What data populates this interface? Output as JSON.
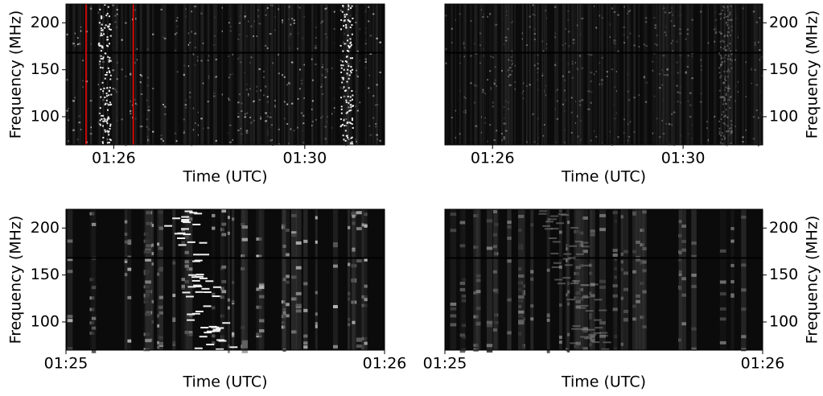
{
  "chart_data": [
    {
      "type": "spectrogram",
      "xlabel": "Time (UTC)",
      "ylabel": "Frequency (MHz)",
      "xlim": [
        25,
        31.67
      ],
      "xticks": [
        {
          "value": 26,
          "label": "01:26"
        },
        {
          "value": 30,
          "label": "01:30"
        }
      ],
      "ylim": [
        70,
        220
      ],
      "yticks": [
        100,
        150,
        200
      ],
      "yaxis_side": "left",
      "vlines": [
        25.42,
        26.41
      ],
      "vline_color": "#ff0000"
    },
    {
      "type": "spectrogram",
      "xlabel": "Time (UTC)",
      "ylabel": "Frequency (MHz)",
      "xlim": [
        25,
        31.67
      ],
      "xticks": [
        {
          "value": 26,
          "label": "01:26"
        },
        {
          "value": 30,
          "label": "01:30"
        }
      ],
      "ylim": [
        70,
        220
      ],
      "yticks": [
        100,
        150,
        200
      ],
      "yaxis_side": "right"
    },
    {
      "type": "spectrogram",
      "xlabel": "Time (UTC)",
      "ylabel": "Frequency (MHz)",
      "xlim": [
        25,
        26
      ],
      "xticks": [
        {
          "value": 25,
          "label": "01:25"
        },
        {
          "value": 26,
          "label": "01:26"
        }
      ],
      "ylim": [
        70,
        220
      ],
      "yticks": [
        100,
        150,
        200
      ],
      "yaxis_side": "left"
    },
    {
      "type": "spectrogram",
      "xlabel": "Time (UTC)",
      "ylabel": "Frequency (MHz)",
      "xlim": [
        25,
        26
      ],
      "xticks": [
        {
          "value": 25,
          "label": "01:25"
        },
        {
          "value": 26,
          "label": "01:26"
        }
      ],
      "ylim": [
        70,
        220
      ],
      "yticks": [
        100,
        150,
        200
      ],
      "yaxis_side": "right"
    }
  ]
}
